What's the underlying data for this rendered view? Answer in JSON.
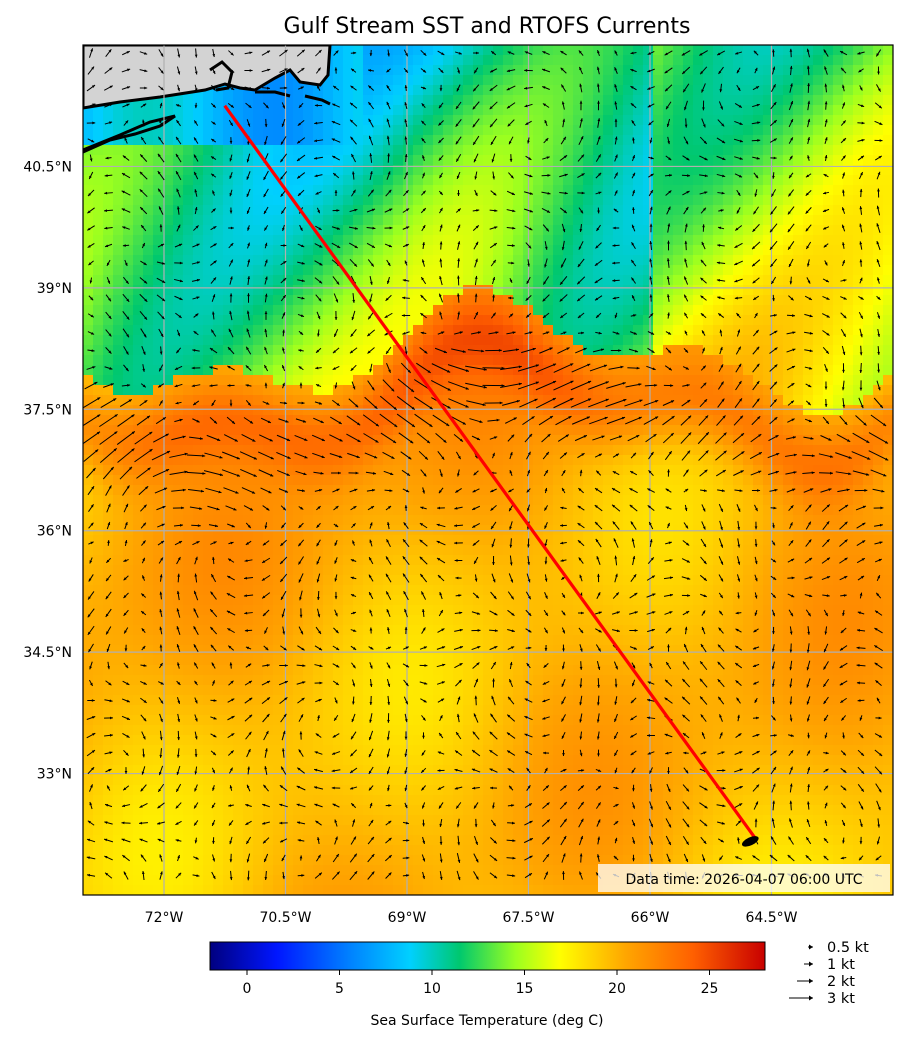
{
  "title": "Gulf Stream SST and RTOFS Currents",
  "data_time": "Data time: 2026-04-07 06:00 UTC",
  "lon_ticks": [
    "72°W",
    "70.5°W",
    "69°W",
    "67.5°W",
    "66°W",
    "64.5°W"
  ],
  "lat_ticks": [
    "40.5°N",
    "39°N",
    "37.5°N",
    "36°N",
    "34.5°N",
    "33°N"
  ],
  "colorbar": {
    "label": "Sea Surface Temperature (deg C)",
    "ticks": [
      "0",
      "5",
      "10",
      "15",
      "20",
      "25"
    ],
    "range": [
      -2,
      28
    ]
  },
  "quiver_key": [
    "0.5 kt",
    "1 kt",
    "2 kt",
    "3 kt"
  ],
  "colors": {
    "route": "#ff0000",
    "land": "#d3d3d3",
    "grid": "#b0b0b0"
  },
  "map_extent": {
    "lon": [
      -73,
      -63
    ],
    "lat": [
      31.5,
      42
    ]
  },
  "route": {
    "start": {
      "lon": -71.25,
      "lat": 41.25
    },
    "end": {
      "lon": -64.7,
      "lat": 32.2
    }
  }
}
